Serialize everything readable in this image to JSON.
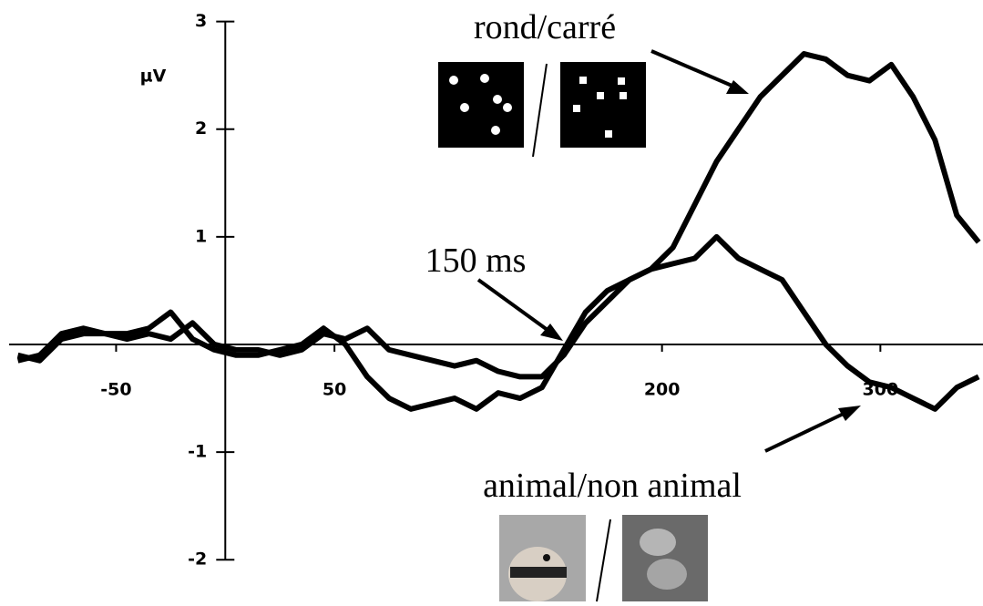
{
  "chart_data": {
    "type": "line",
    "y_label": "µV",
    "annotations": [
      "150 ms"
    ],
    "x": [
      -95,
      -85,
      -75,
      -65,
      -55,
      -45,
      -35,
      -25,
      -15,
      -5,
      5,
      15,
      25,
      35,
      45,
      55,
      65,
      75,
      85,
      95,
      105,
      115,
      125,
      135,
      145,
      155,
      165,
      175,
      185,
      195,
      205,
      215,
      225,
      235,
      245,
      255,
      265,
      275,
      285,
      295,
      305,
      315,
      325,
      335,
      345
    ],
    "series": [
      {
        "name": "rond/carré",
        "color": "#000000",
        "values": [
          -0.1,
          -0.15,
          0.05,
          0.1,
          0.1,
          0.05,
          0.1,
          0.05,
          0.2,
          0.0,
          -0.05,
          -0.05,
          -0.1,
          -0.05,
          0.1,
          0.05,
          0.15,
          -0.05,
          -0.1,
          -0.15,
          -0.2,
          -0.15,
          -0.25,
          -0.3,
          -0.3,
          -0.1,
          0.2,
          0.4,
          0.6,
          0.7,
          0.9,
          1.3,
          1.7,
          2.0,
          2.3,
          2.5,
          2.7,
          2.65,
          2.5,
          2.45,
          2.6,
          2.3,
          1.9,
          1.2,
          0.95
        ]
      },
      {
        "name": "animal/non animal",
        "color": "#000000",
        "values": [
          -0.15,
          -0.1,
          0.1,
          0.15,
          0.1,
          0.1,
          0.15,
          0.3,
          0.05,
          -0.05,
          -0.1,
          -0.1,
          -0.05,
          0.0,
          0.15,
          0.0,
          -0.3,
          -0.5,
          -0.6,
          -0.55,
          -0.5,
          -0.6,
          -0.45,
          -0.5,
          -0.4,
          -0.05,
          0.3,
          0.5,
          0.6,
          0.7,
          0.75,
          0.8,
          1.0,
          0.8,
          0.7,
          0.6,
          0.3,
          0.0,
          -0.2,
          -0.35,
          -0.4,
          -0.5,
          -0.6,
          -0.4,
          -0.3
        ]
      }
    ],
    "xlim": [
      -99,
      347
    ],
    "ylim": [
      -2.43,
      3.2
    ],
    "xticks": [
      -50,
      50,
      200,
      300
    ],
    "yticks": [
      -2,
      -1,
      1,
      2,
      3
    ]
  }
}
